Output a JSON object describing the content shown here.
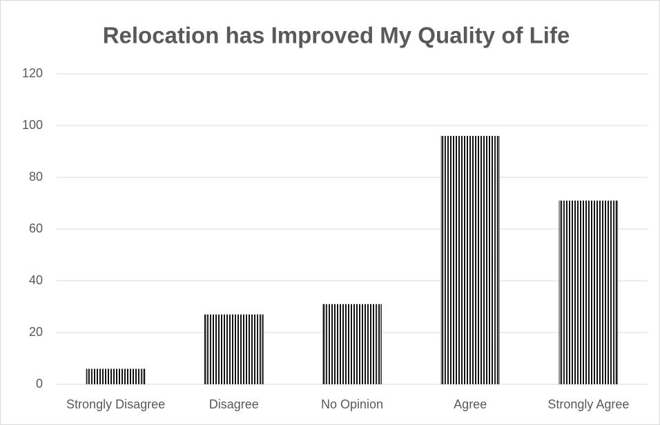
{
  "chart_data": {
    "type": "bar",
    "title": "Relocation has Improved My Quality of Life",
    "categories": [
      "Strongly Disagree",
      "Disagree",
      "No Opinion",
      "Agree",
      "Strongly Agree"
    ],
    "values": [
      6,
      27,
      31,
      96,
      71
    ],
    "color": "#111111",
    "ylim": [
      0,
      120
    ],
    "yticks": [
      0,
      20,
      40,
      60,
      80,
      100,
      120
    ],
    "grid": true
  }
}
